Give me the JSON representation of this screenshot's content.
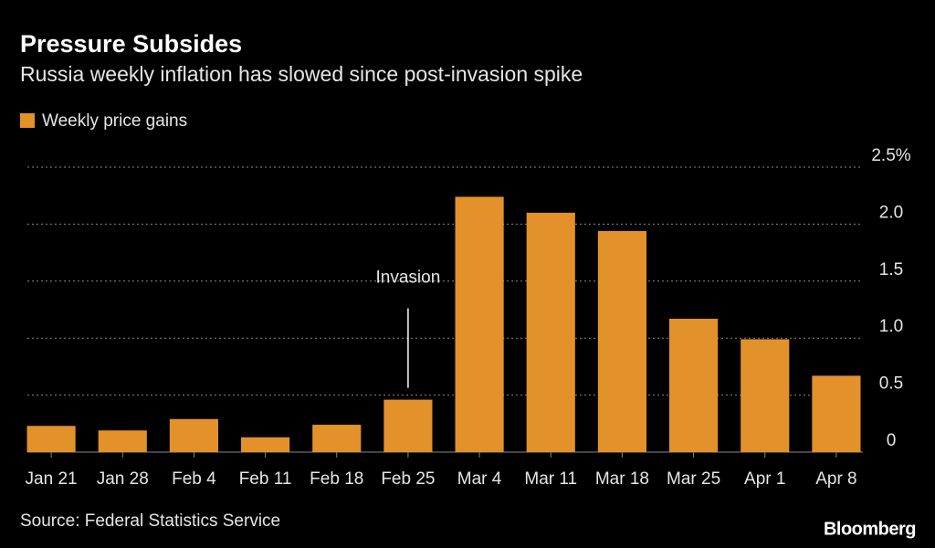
{
  "chart_data": {
    "type": "bar",
    "title": "Pressure Subsides",
    "subtitle": "Russia weekly inflation has slowed since post-invasion spike",
    "categories": [
      "Jan 21",
      "Jan 28",
      "Feb 4",
      "Feb 11",
      "Feb 18",
      "Feb 25",
      "Mar 4",
      "Mar 11",
      "Mar 18",
      "Mar 25",
      "Apr 1",
      "Apr 8"
    ],
    "series": [
      {
        "name": "Weekly price gains",
        "color": "#e3912b",
        "values": [
          0.23,
          0.19,
          0.29,
          0.13,
          0.24,
          0.46,
          2.24,
          2.1,
          1.94,
          1.17,
          0.99,
          0.67
        ]
      }
    ],
    "ylim": [
      0,
      2.5
    ],
    "yticks": [
      0,
      0.5,
      {
        "value": 1,
        "label": "1.0"
      },
      1.5,
      {
        "value": 2,
        "label": "2.0"
      },
      {
        "value": 2.5,
        "label": "2.5%"
      }
    ],
    "grid": true,
    "annotation": {
      "text": "Invasion",
      "category": "Feb 25"
    },
    "source": "Source: Federal Statistics Service",
    "logo": "Bloomberg"
  }
}
